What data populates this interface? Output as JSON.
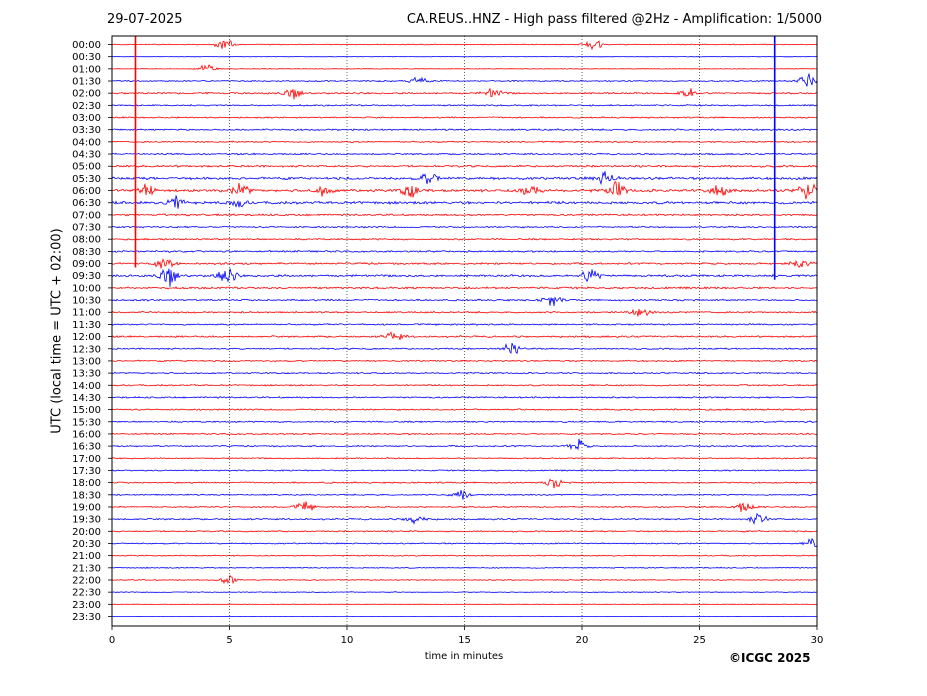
{
  "header": {
    "date": "29-07-2025",
    "title": "CA.REUS..HNZ - High pass filtered @2Hz - Amplification: 1/5000"
  },
  "copyright": "©ICGC 2025",
  "colors": {
    "trace_a": "#ff0000",
    "trace_b": "#0000ff",
    "grid": "#000000",
    "axes": "#000000"
  },
  "chart_data": {
    "type": "line",
    "title": "CA.REUS..HNZ - High pass filtered @2Hz - Amplification: 1/5000",
    "xlabel": "time in minutes",
    "ylabel": "UTC (local time = UTC + 02:00)",
    "xlim": [
      0,
      30
    ],
    "x_ticks": [
      "0",
      "5",
      "10",
      "15",
      "20",
      "25",
      "30"
    ],
    "x_grid": [
      5,
      10,
      15,
      20,
      25
    ],
    "grid": true,
    "rows": [
      "00:00",
      "00:30",
      "01:00",
      "01:30",
      "02:00",
      "02:30",
      "03:00",
      "03:30",
      "04:00",
      "04:30",
      "05:00",
      "05:30",
      "06:00",
      "06:30",
      "07:00",
      "07:30",
      "08:00",
      "08:30",
      "09:00",
      "09:30",
      "10:00",
      "10:30",
      "11:00",
      "11:30",
      "12:00",
      "12:30",
      "13:00",
      "13:30",
      "14:00",
      "14:30",
      "15:00",
      "15:30",
      "16:00",
      "16:30",
      "17:00",
      "17:30",
      "18:00",
      "18:30",
      "19:00",
      "19:30",
      "20:00",
      "20:30",
      "21:00",
      "21:30",
      "22:00",
      "22:30",
      "23:00",
      "23:30"
    ],
    "row_colors": "alternating red / blue, starting red at 00:00",
    "noise_level": [
      0.3,
      0.15,
      0.2,
      0.45,
      0.6,
      0.5,
      0.5,
      0.6,
      0.5,
      0.55,
      0.7,
      0.9,
      0.95,
      0.9,
      0.65,
      0.55,
      0.55,
      0.6,
      0.7,
      0.8,
      0.7,
      0.6,
      0.6,
      0.55,
      0.6,
      0.55,
      0.5,
      0.5,
      0.5,
      0.55,
      0.55,
      0.5,
      0.5,
      0.5,
      0.45,
      0.45,
      0.5,
      0.45,
      0.45,
      0.55,
      0.5,
      0.45,
      0.4,
      0.35,
      0.35,
      0.3,
      0.15,
      0.1
    ],
    "events": [
      {
        "row": "00:00",
        "t": 4.8,
        "amp": 1.6
      },
      {
        "row": "00:00",
        "t": 20.5,
        "amp": 1.4
      },
      {
        "row": "01:00",
        "t": 4.0,
        "amp": 1.0
      },
      {
        "row": "01:30",
        "t": 13.0,
        "amp": 1.2
      },
      {
        "row": "01:30",
        "t": 29.6,
        "amp": 2.0
      },
      {
        "row": "02:00",
        "t": 7.7,
        "amp": 1.3
      },
      {
        "row": "02:00",
        "t": 16.2,
        "amp": 1.4
      },
      {
        "row": "02:00",
        "t": 24.5,
        "amp": 1.5
      },
      {
        "row": "05:30",
        "t": 13.5,
        "amp": 1.6
      },
      {
        "row": "05:30",
        "t": 21.0,
        "amp": 1.8
      },
      {
        "row": "06:00",
        "t": 1.5,
        "amp": 1.8
      },
      {
        "row": "06:00",
        "t": 5.5,
        "amp": 1.7
      },
      {
        "row": "06:00",
        "t": 9.0,
        "amp": 1.6
      },
      {
        "row": "06:00",
        "t": 12.7,
        "amp": 2.0
      },
      {
        "row": "06:00",
        "t": 17.8,
        "amp": 1.9
      },
      {
        "row": "06:00",
        "t": 21.5,
        "amp": 2.0
      },
      {
        "row": "06:00",
        "t": 25.8,
        "amp": 2.0
      },
      {
        "row": "06:00",
        "t": 29.6,
        "amp": 2.2
      },
      {
        "row": "06:30",
        "t": 2.7,
        "amp": 1.5
      },
      {
        "row": "06:30",
        "t": 5.3,
        "amp": 1.6
      },
      {
        "row": "09:00",
        "t": 2.2,
        "amp": 1.5
      },
      {
        "row": "09:00",
        "t": 29.3,
        "amp": 1.6
      },
      {
        "row": "09:30",
        "t": 2.4,
        "amp": 2.4
      },
      {
        "row": "09:30",
        "t": 4.9,
        "amp": 2.4
      },
      {
        "row": "09:30",
        "t": 20.4,
        "amp": 2.0
      },
      {
        "row": "10:30",
        "t": 18.7,
        "amp": 1.4
      },
      {
        "row": "11:00",
        "t": 22.5,
        "amp": 1.2
      },
      {
        "row": "12:00",
        "t": 12.0,
        "amp": 1.4
      },
      {
        "row": "12:30",
        "t": 17.0,
        "amp": 1.3
      },
      {
        "row": "16:30",
        "t": 19.8,
        "amp": 1.8
      },
      {
        "row": "18:00",
        "t": 18.8,
        "amp": 1.3
      },
      {
        "row": "18:30",
        "t": 14.8,
        "amp": 1.5
      },
      {
        "row": "19:00",
        "t": 8.2,
        "amp": 1.3
      },
      {
        "row": "19:00",
        "t": 26.9,
        "amp": 1.5
      },
      {
        "row": "19:30",
        "t": 12.9,
        "amp": 1.4
      },
      {
        "row": "19:30",
        "t": 27.5,
        "amp": 1.4
      },
      {
        "row": "20:30",
        "t": 29.8,
        "amp": 1.3
      },
      {
        "row": "22:00",
        "t": 5.0,
        "amp": 1.3
      }
    ],
    "spikes": [
      {
        "row_from": "00:00",
        "row_to": "09:00",
        "t": 1.0,
        "color": "#ff0000"
      },
      {
        "row_from": "00:00",
        "row_to": "09:30",
        "t": 28.2,
        "color": "#0000ff"
      }
    ]
  }
}
